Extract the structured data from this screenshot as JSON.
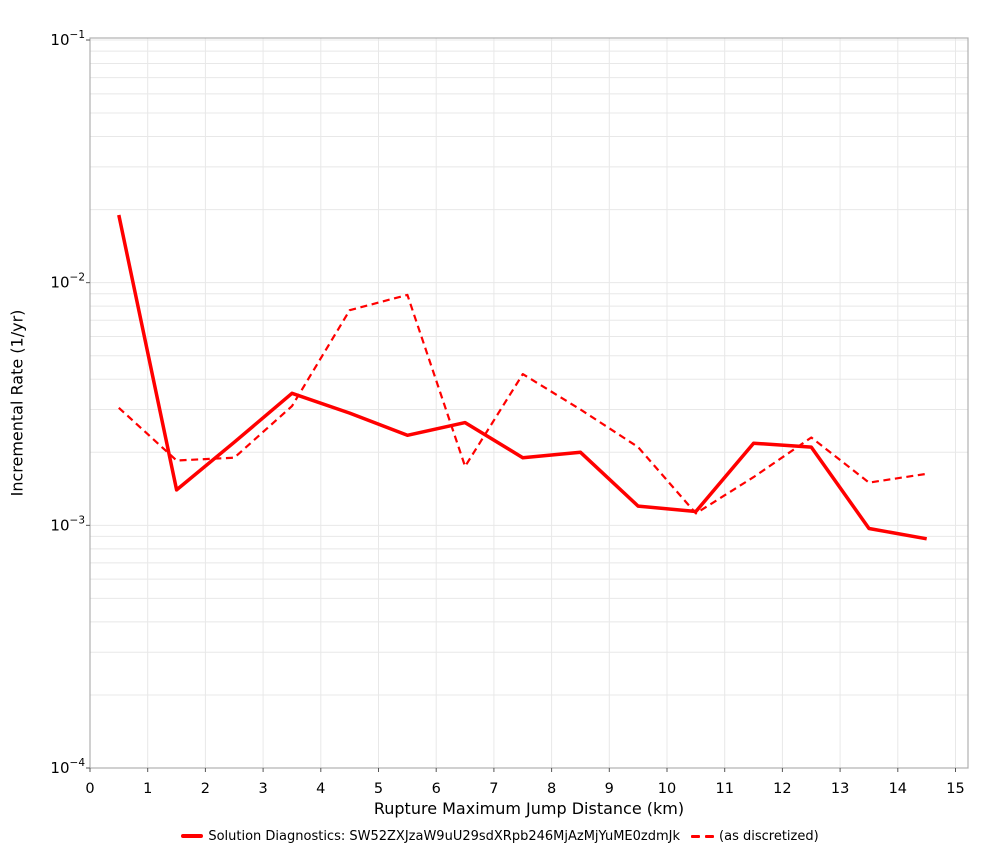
{
  "figure": {
    "background": "#ffffff",
    "frame_color": "#b0b0b0",
    "grid_color": "#e8e8e8",
    "tick_color": "#555555",
    "accent_red": "#ff0000"
  },
  "chart_data": {
    "type": "line",
    "title": "",
    "xlabel": "Rupture Maximum Jump Distance (km)",
    "ylabel": "Incremental Rate (1/yr)",
    "yscale": "log",
    "xlim": [
      0,
      15.2
    ],
    "ylim": [
      0.0001,
      0.1
    ],
    "x_ticks": [
      0,
      1,
      2,
      3,
      4,
      5,
      6,
      7,
      8,
      9,
      10,
      11,
      12,
      13,
      14,
      15
    ],
    "y_tick_exponents": [
      -1,
      -2,
      -3,
      -4
    ],
    "grid": true,
    "legend_position": "bottom-center",
    "x": [
      0.5,
      1.5,
      2.5,
      3.5,
      4.5,
      5.5,
      6.5,
      7.5,
      8.5,
      9.5,
      10.5,
      11.5,
      12.5,
      13.5,
      14.5
    ],
    "series": [
      {
        "name": "Solution Diagnostics: SW52ZXJzaW9uU29sdXRpb246MjAzMjYuME0zdmJk",
        "style": "solid",
        "color": "#ff0000",
        "width": 3.5,
        "values": [
          0.019,
          0.0014,
          0.0022,
          0.0035,
          0.0029,
          0.00235,
          0.00265,
          0.0019,
          0.002,
          0.0012,
          0.00114,
          0.00218,
          0.0021,
          0.00097,
          0.00088
        ]
      },
      {
        "name": "(as discretized)",
        "style": "dashed",
        "color": "#ff0000",
        "width": 2.2,
        "values": [
          0.00305,
          0.00185,
          0.0019,
          0.0031,
          0.0077,
          0.0089,
          0.00175,
          0.0042,
          0.003,
          0.0021,
          0.00112,
          0.00158,
          0.0023,
          0.0015,
          0.00163
        ]
      }
    ]
  }
}
